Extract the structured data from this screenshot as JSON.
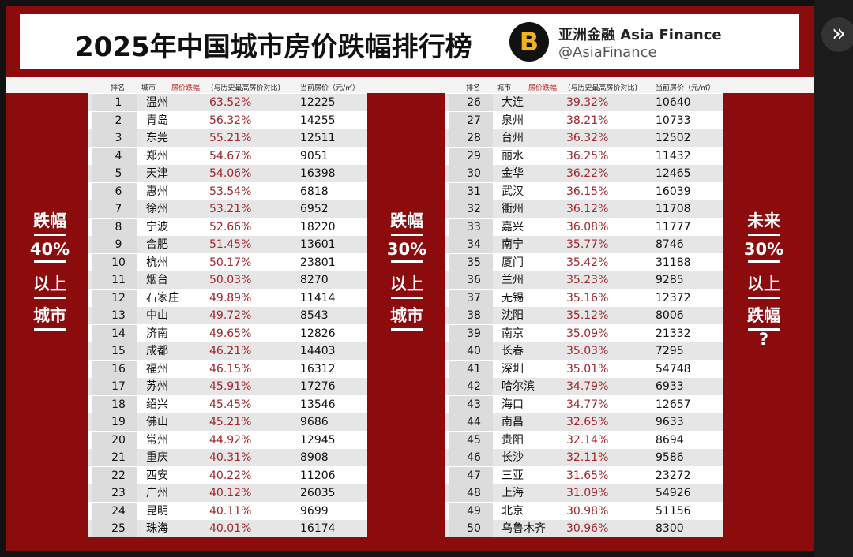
{
  "header": {
    "title": "2025年中国城市房价跌幅排行榜",
    "brand": "亚洲金融 Asia Finance",
    "handle": "@AsiaFinance",
    "logo": "B"
  },
  "columns": [
    "排名",
    "城市",
    "房价跌幅",
    "(与历史最高房价对比)",
    "当前房价（元/㎡）"
  ],
  "left_label": [
    "跌幅",
    "40%",
    "以上",
    "城市"
  ],
  "middle_label": [
    "跌幅",
    "30%",
    "以上",
    "城市"
  ],
  "right_label": [
    "未来",
    "30%",
    "以上",
    "跌幅",
    "?"
  ],
  "tables": [
    {
      "rows": [
        [
          1,
          "温州",
          "63.52%",
          12225
        ],
        [
          2,
          "青岛",
          "56.32%",
          14255
        ],
        [
          3,
          "东莞",
          "55.21%",
          12511
        ],
        [
          4,
          "郑州",
          "54.67%",
          9051
        ],
        [
          5,
          "天津",
          "54.06%",
          16398
        ],
        [
          6,
          "惠州",
          "53.54%",
          6818
        ],
        [
          7,
          "徐州",
          "53.21%",
          6952
        ],
        [
          8,
          "宁波",
          "52.66%",
          18220
        ],
        [
          9,
          "合肥",
          "51.45%",
          13601
        ],
        [
          10,
          "杭州",
          "50.17%",
          23801
        ],
        [
          11,
          "烟台",
          "50.03%",
          8270
        ],
        [
          12,
          "石家庄",
          "49.89%",
          11414
        ],
        [
          13,
          "中山",
          "49.72%",
          8543
        ],
        [
          14,
          "济南",
          "49.65%",
          12826
        ],
        [
          15,
          "成都",
          "46.21%",
          14403
        ],
        [
          16,
          "福州",
          "46.15%",
          16312
        ],
        [
          17,
          "苏州",
          "45.91%",
          17276
        ],
        [
          18,
          "绍兴",
          "45.45%",
          13546
        ],
        [
          19,
          "佛山",
          "45.21%",
          9686
        ],
        [
          20,
          "常州",
          "44.92%",
          12945
        ],
        [
          21,
          "重庆",
          "40.31%",
          8908
        ],
        [
          22,
          "西安",
          "40.22%",
          11206
        ],
        [
          23,
          "广州",
          "40.12%",
          26035
        ],
        [
          24,
          "昆明",
          "40.11%",
          9699
        ],
        [
          25,
          "珠海",
          "40.01%",
          16174
        ]
      ]
    },
    {
      "rows": [
        [
          26,
          "大连",
          "39.32%",
          10640
        ],
        [
          27,
          "泉州",
          "38.21%",
          10733
        ],
        [
          28,
          "台州",
          "36.32%",
          12502
        ],
        [
          29,
          "丽水",
          "36.25%",
          11432
        ],
        [
          30,
          "金华",
          "36.22%",
          12465
        ],
        [
          31,
          "武汉",
          "36.15%",
          16039
        ],
        [
          32,
          "衢州",
          "36.12%",
          11708
        ],
        [
          33,
          "嘉兴",
          "36.08%",
          11777
        ],
        [
          34,
          "南宁",
          "35.77%",
          8746
        ],
        [
          35,
          "厦门",
          "35.42%",
          31188
        ],
        [
          36,
          "兰州",
          "35.23%",
          9285
        ],
        [
          37,
          "无锡",
          "35.16%",
          12372
        ],
        [
          38,
          "沈阳",
          "35.12%",
          8006
        ],
        [
          39,
          "南京",
          "35.09%",
          21332
        ],
        [
          40,
          "长春",
          "35.03%",
          7295
        ],
        [
          41,
          "深圳",
          "35.01%",
          54748
        ],
        [
          42,
          "哈尔滨",
          "34.79%",
          6933
        ],
        [
          43,
          "海口",
          "34.77%",
          12657
        ],
        [
          44,
          "南昌",
          "32.65%",
          9633
        ],
        [
          45,
          "贵阳",
          "32.14%",
          8694
        ],
        [
          46,
          "长沙",
          "32.11%",
          9586
        ],
        [
          47,
          "三亚",
          "31.65%",
          23272
        ],
        [
          48,
          "上海",
          "31.09%",
          54926
        ],
        [
          49,
          "北京",
          "30.98%",
          51156
        ],
        [
          50,
          "乌鲁木齐",
          "30.96%",
          8300
        ]
      ]
    }
  ],
  "button": "»"
}
